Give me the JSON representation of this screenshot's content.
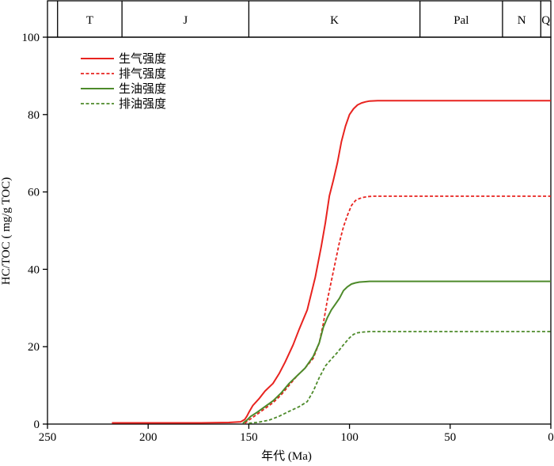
{
  "chart_data": {
    "type": "line",
    "xlabel": "年代 (Ma)",
    "ylabel": "HC/TOC ( mg/g TOC)",
    "xlim": [
      250,
      0
    ],
    "ylim": [
      0,
      100
    ],
    "x_ticks": [
      250,
      200,
      150,
      100,
      50,
      0
    ],
    "y_ticks": [
      0,
      20,
      40,
      60,
      80,
      100
    ],
    "grid": false,
    "legend_position": "top-left",
    "periods": [
      {
        "label": "T",
        "from": 245,
        "to": 213
      },
      {
        "label": "J",
        "from": 213,
        "to": 150
      },
      {
        "label": "K",
        "from": 150,
        "to": 65
      },
      {
        "label": "Pal",
        "from": 65,
        "to": 24
      },
      {
        "label": "N",
        "from": 24,
        "to": 5
      },
      {
        "label": "Q",
        "from": 5,
        "to": 0
      }
    ],
    "series": [
      {
        "name": "生气强度",
        "color": "#e8231f",
        "dash": "solid",
        "x": [
          218,
          200,
          175,
          160,
          154,
          152,
          151,
          150,
          148,
          145,
          142,
          138,
          135,
          132,
          128,
          125,
          121,
          117,
          114,
          112,
          110,
          108,
          106,
          104,
          102,
          100,
          98,
          96,
          94,
          92,
          90,
          86,
          80,
          70,
          50,
          30,
          10,
          0
        ],
        "y": [
          0.3,
          0.3,
          0.3,
          0.4,
          0.6,
          1.2,
          2.0,
          3.0,
          4.8,
          6.5,
          8.5,
          10.5,
          13.0,
          16.0,
          20.5,
          24.5,
          29.5,
          38.0,
          46.0,
          52.0,
          59.0,
          63.0,
          67.5,
          73.0,
          77.0,
          80.0,
          81.5,
          82.5,
          83.0,
          83.3,
          83.5,
          83.6,
          83.6,
          83.6,
          83.6,
          83.6,
          83.6,
          83.6
        ]
      },
      {
        "name": "排气强度",
        "color": "#e8231f",
        "dash": "dashed",
        "x": [
          152,
          150,
          146,
          142,
          138,
          134,
          130,
          126,
          122,
          118,
          115,
          113,
          111,
          109,
          107,
          105,
          103,
          101,
          99,
          97,
          95,
          93,
          91,
          88,
          84,
          80,
          70,
          50,
          30,
          10,
          0
        ],
        "y": [
          0.2,
          1.0,
          2.5,
          4.0,
          5.5,
          7.5,
          10.0,
          12.5,
          14.5,
          17.0,
          21.0,
          26.0,
          32.0,
          37.0,
          42.0,
          47.0,
          51.0,
          54.0,
          56.5,
          57.8,
          58.3,
          58.6,
          58.8,
          58.9,
          58.9,
          58.9,
          58.9,
          58.9,
          58.9,
          58.9,
          58.9
        ]
      },
      {
        "name": "生油强度",
        "color": "#4d8a2a",
        "dash": "solid",
        "x": [
          153,
          151,
          149,
          146,
          142,
          138,
          134,
          130,
          126,
          122,
          118,
          115,
          113,
          111,
          109,
          107,
          105,
          103,
          101,
          99,
          97,
          95,
          92,
          90,
          88,
          84,
          80,
          70,
          50,
          30,
          10,
          0
        ],
        "y": [
          0.2,
          1.0,
          2.0,
          3.0,
          4.5,
          6.0,
          8.0,
          10.5,
          12.5,
          14.5,
          17.5,
          21.0,
          25.0,
          27.5,
          29.5,
          31.0,
          32.5,
          34.5,
          35.5,
          36.2,
          36.5,
          36.7,
          36.8,
          36.9,
          36.9,
          36.9,
          36.9,
          36.9,
          36.9,
          36.9,
          36.9,
          36.9
        ]
      },
      {
        "name": "排油强度",
        "color": "#4d8a2a",
        "dash": "dashed",
        "x": [
          150,
          145,
          140,
          135,
          130,
          125,
          121,
          118,
          115,
          112,
          109,
          106,
          103,
          100,
          98,
          96,
          93,
          90,
          87,
          84,
          80,
          70,
          50,
          30,
          10,
          0
        ],
        "y": [
          0.2,
          0.5,
          1.0,
          2.0,
          3.3,
          4.5,
          5.8,
          8.5,
          12.0,
          15.0,
          16.8,
          18.5,
          20.5,
          22.3,
          23.2,
          23.6,
          23.8,
          23.9,
          23.9,
          23.9,
          23.9,
          23.9,
          23.9,
          23.9,
          23.9,
          23.9
        ]
      }
    ]
  }
}
